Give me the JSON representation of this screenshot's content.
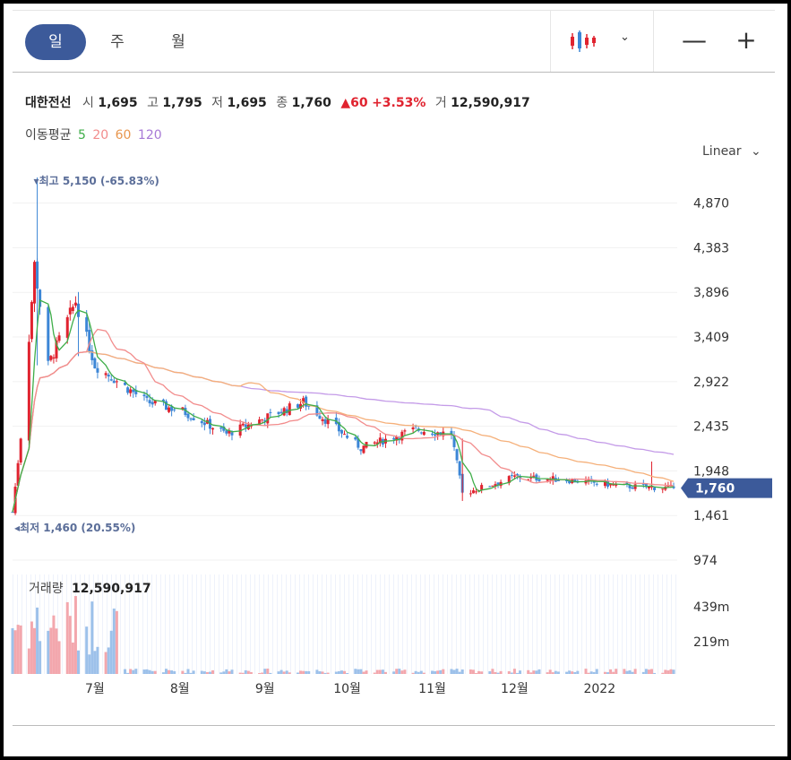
{
  "toolbar": {
    "periods": [
      "일",
      "주",
      "월"
    ],
    "chart_type_icon": "candlestick-icon",
    "dropdown_icon": "chevron-down-icon",
    "zoom_out": "—",
    "zoom_in": "+"
  },
  "quote": {
    "name": "대한전선",
    "open_label": "시",
    "open": "1,695",
    "high_label": "고",
    "high": "1,795",
    "low_label": "저",
    "low": "1,695",
    "close_label": "종",
    "close": "1,760",
    "change": "▲60",
    "change_pct": "+3.53%",
    "volume_label": "거",
    "volume": "12,590,917"
  },
  "ma_legend": {
    "label": "이동평균",
    "periods": [
      "5",
      "20",
      "60",
      "120"
    ]
  },
  "scale": {
    "label": "Linear"
  },
  "colors": {
    "up": "#e0232f",
    "down": "#3c86d6",
    "ma5": "#3fae49",
    "ma20": "#f28c8c",
    "ma60": "#f5b07a",
    "ma120": "#c49be8",
    "accent": "#3c5a9a"
  },
  "chart_data": {
    "type": "candlestick",
    "price_ticks": [
      "4,870",
      "4,383",
      "3,896",
      "3,409",
      "2,922",
      "2,435",
      "1,948",
      "1,461",
      "974"
    ],
    "volume_ticks": [
      "439m",
      "219m"
    ],
    "x_labels": [
      "7월",
      "8월",
      "9월",
      "10월",
      "11월",
      "12월",
      "2022"
    ],
    "current_price": "1,760",
    "high_note": "최고 5,150 (-65.83%)",
    "low_note": "최저 1,460 (20.55%)",
    "volume_title": "거래량",
    "volume_value": "12,590,917",
    "price_range": [
      974,
      5150
    ],
    "volume_max": 439000000,
    "key_closes": [
      {
        "date": "2021-06-01",
        "close": 1500
      },
      {
        "date": "2021-06-05",
        "close": 2600
      },
      {
        "date": "2021-06-09",
        "close": 4200
      },
      {
        "date": "2021-06-14",
        "close": 3100
      },
      {
        "date": "2021-06-24",
        "close": 3800
      },
      {
        "date": "2021-07-01",
        "close": 3100
      },
      {
        "date": "2021-07-20",
        "close": 2700
      },
      {
        "date": "2021-08-02",
        "close": 2600
      },
      {
        "date": "2021-08-18",
        "close": 2350
      },
      {
        "date": "2021-09-15",
        "close": 2700
      },
      {
        "date": "2021-10-06",
        "close": 2200
      },
      {
        "date": "2021-10-26",
        "close": 2400
      },
      {
        "date": "2021-11-08",
        "close": 2350
      },
      {
        "date": "2021-11-12",
        "close": 1700
      },
      {
        "date": "2021-12-01",
        "close": 1880
      },
      {
        "date": "2021-12-20",
        "close": 1850
      },
      {
        "date": "2022-01-10",
        "close": 1780
      },
      {
        "date": "2022-01-28",
        "close": 1760
      }
    ]
  }
}
